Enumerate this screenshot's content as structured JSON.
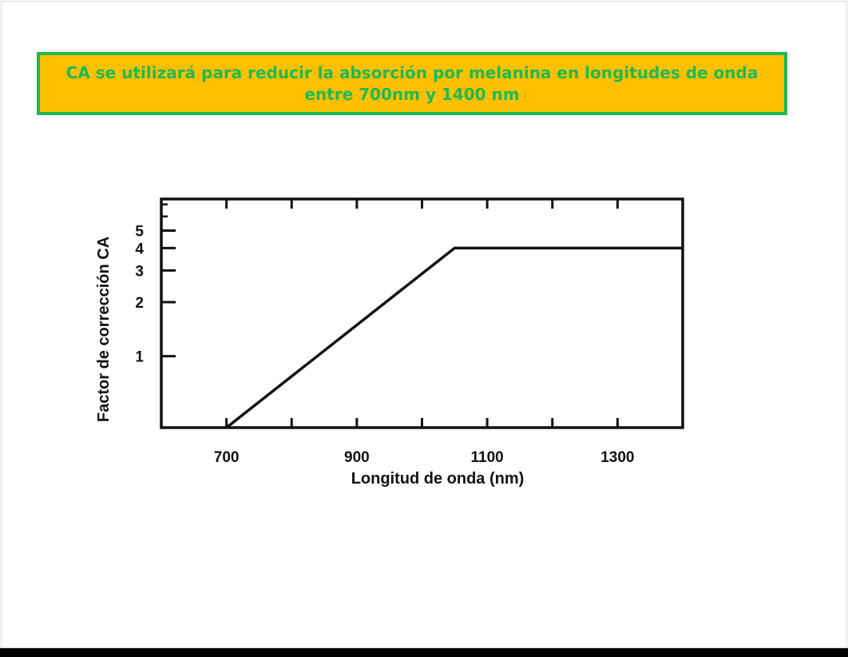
{
  "slide": {
    "banner_text": "CA se utilizará  para reducir la absorción por melanina en longitudes de onda entre 700nm y 1400 nm",
    "banner_background": "#FFC000",
    "banner_border": "#1DB954",
    "banner_text_color": "#1DB954"
  },
  "chart_data": {
    "type": "line",
    "title": "",
    "xlabel": "Longitud de onda (nm)",
    "ylabel": "Factor de corrección CA",
    "y_scale": "log",
    "xlim": [
      600,
      1400
    ],
    "ylim": [
      0.4,
      7.5
    ],
    "x_ticks": [
      700,
      900,
      1100,
      1300
    ],
    "x_tick_labels": [
      "700",
      "900",
      "1100",
      "1300"
    ],
    "x_minor_ticks": [
      800,
      1000,
      1200
    ],
    "y_ticks": [
      1,
      2,
      3,
      4,
      5
    ],
    "y_tick_labels": [
      "1",
      "2",
      "3",
      "4",
      "5"
    ],
    "y_minor_ticks": [
      6,
      7
    ],
    "grid": false,
    "legend": "none",
    "series": [
      {
        "x": [
          700,
          1050,
          1400
        ],
        "y": [
          0.4,
          4,
          4
        ]
      }
    ]
  }
}
